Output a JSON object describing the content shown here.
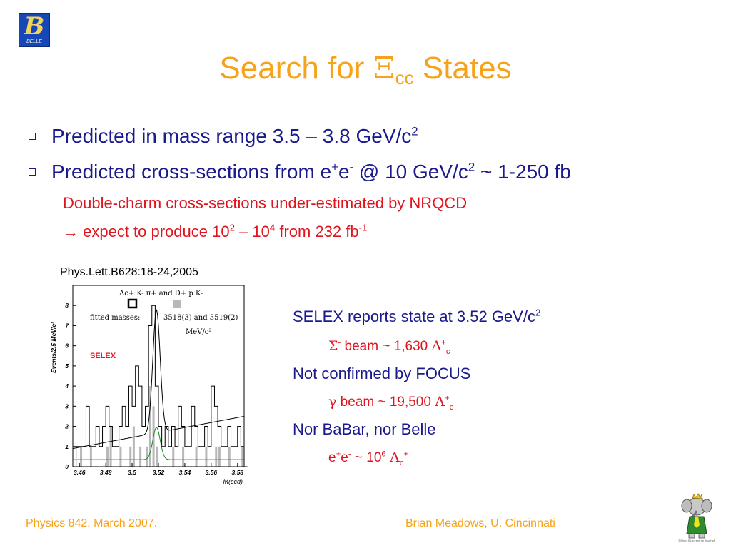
{
  "logo": {
    "text": "BELLE"
  },
  "title": {
    "prefix": "Search for ",
    "symbol": "Ξ",
    "subscript": "cc",
    "suffix": " States"
  },
  "bullets": [
    {
      "text": "Predicted in mass range 3.5 – 3.8 GeV/c",
      "sup": "2"
    },
    {
      "p1": "Predicted cross-sections from e",
      "sup1": "+",
      "p2": "e",
      "sup2": "-",
      "p3": " @ 10 GeV/c",
      "sup3": "2",
      "p4": " ~ 1-250 fb"
    }
  ],
  "subpoints": [
    {
      "text": "Double-charm cross-sections under-estimated by NRQCD"
    },
    {
      "arrow": "→",
      "p1": " expect to produce 10",
      "sup1": "2",
      "p2": " – 10",
      "sup2": "4",
      "p3": " from 232 fb",
      "sup3": "-1"
    }
  ],
  "reference": "Phys.Lett.B628:18-24,2005",
  "right_panel": {
    "selex": {
      "text": "SELEX reports state at 3.52 GeV/c",
      "sup": "2"
    },
    "sigma": {
      "sym": "Σ",
      "sup": "-",
      "text": " beam ~ 1,630 ",
      "sym2": "Λ",
      "sup2": "+",
      "sub2": "c"
    },
    "focus": "Not confirmed by FOCUS",
    "gamma": {
      "sym": "γ",
      "text": " beam ~ 19,500 ",
      "sym2": "Λ",
      "sup2": "+",
      "sub2": "c"
    },
    "nor": "Nor BaBar, nor Belle",
    "ee": {
      "p1": "e",
      "sup1": "+",
      "p2": "e",
      "sup2": "-",
      "p3": " ~ 10",
      "sup3": "6",
      "sp": " ",
      "sym": "Λ",
      "sub": "c",
      "sup4": "+"
    }
  },
  "footer": {
    "left": "Physics 842, March 2007.",
    "right": "Brian Meadows, U. Cincinnati",
    "credit": "©Brian @Laurent de Brunhoff"
  },
  "chart_data": {
    "type": "bar",
    "xlabel": "M(ccd)",
    "ylabel": "Events/2.5 MeV/c²",
    "x_ticks": [
      "3.46",
      "3.48",
      "3.5",
      "3.52",
      "3.54",
      "3.56",
      "3.58"
    ],
    "y_ticks": [
      "0",
      "1",
      "2",
      "3",
      "4",
      "5",
      "6",
      "7",
      "8"
    ],
    "xlim": [
      3.455,
      3.585
    ],
    "ylim": [
      0,
      9
    ],
    "bin_width": 0.0025,
    "bin_start": 3.4575,
    "hist_open": [
      1,
      1,
      1,
      3,
      1,
      1,
      2,
      1,
      2,
      3,
      2,
      1,
      1,
      2,
      3,
      2,
      4,
      3,
      5,
      4,
      2,
      3,
      7,
      8,
      4,
      2,
      1,
      2,
      1,
      2,
      1,
      3,
      2,
      1,
      1,
      3,
      2,
      1,
      1,
      2,
      1,
      4,
      3,
      2,
      1,
      1,
      2,
      1,
      1,
      2,
      1,
      0
    ],
    "hist_shaded": [
      0,
      1,
      0,
      0,
      1,
      0,
      0,
      0,
      0,
      1,
      2,
      0,
      0,
      1,
      0,
      0,
      1,
      2,
      0,
      1,
      0,
      1,
      4,
      3,
      1,
      0,
      0,
      0,
      0,
      1,
      0,
      0,
      1,
      0,
      0,
      0,
      1,
      0,
      0,
      1,
      0,
      0,
      1,
      1,
      0,
      0,
      1,
      0,
      0,
      0,
      1,
      0
    ],
    "legend": {
      "open_label": "Λc+ K- π+ and D+ p K-",
      "fitted_label": "fitted masses:",
      "fitted_values": "3518(3) and 3519(2)",
      "fitted_unit": "MeV/c²"
    },
    "annotation": "SELEX",
    "fit": {
      "mean": 3.5185,
      "sigma": 0.0028,
      "amp": 6.1,
      "bg_start": 0.9,
      "bg_end": 2.5
    },
    "fit_small": {
      "amp": 1.6,
      "bg": 0.35
    },
    "colors": {
      "open": "#000000",
      "shaded": "#b8b8b8",
      "fit": "#000000",
      "fit_small": "#1a8a1a",
      "annotation": "#e0141e"
    }
  }
}
